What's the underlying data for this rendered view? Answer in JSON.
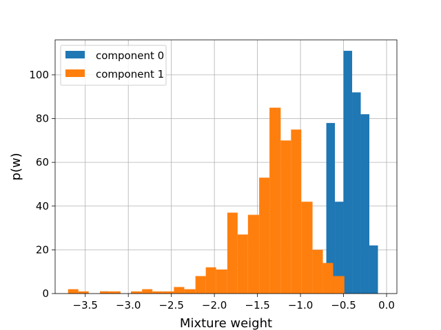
{
  "chart_data": {
    "type": "bar",
    "title": "",
    "xlabel": "Mixture weight",
    "ylabel": "p(w)",
    "xlim": [
      -3.85,
      0.12
    ],
    "ylim": [
      0,
      116
    ],
    "grid": true,
    "legend_position": "top-left",
    "x_ticks": [
      -3.5,
      -3.0,
      -2.5,
      -2.0,
      -1.5,
      -1.0,
      -0.5,
      0.0
    ],
    "x_tick_labels": [
      "−3.5",
      "−3.0",
      "−2.5",
      "−2.0",
      "−1.5",
      "−1.0",
      "−0.5",
      "0.0"
    ],
    "y_ticks": [
      0,
      20,
      40,
      60,
      80,
      100
    ],
    "y_tick_labels": [
      "0",
      "20",
      "40",
      "60",
      "80",
      "100"
    ],
    "series": [
      {
        "name": "component 0",
        "color": "#1f77b4",
        "bins": [
          [
            -3.33,
            -3.23,
            1
          ],
          [
            -0.7,
            -0.6,
            78
          ],
          [
            -0.6,
            -0.5,
            42
          ],
          [
            -0.5,
            -0.4,
            111
          ],
          [
            -0.4,
            -0.3,
            92
          ],
          [
            -0.3,
            -0.2,
            82
          ],
          [
            -0.2,
            -0.1,
            22
          ]
        ]
      },
      {
        "name": "component 1",
        "color": "#ff7f0e",
        "bins": [
          [
            -3.7,
            -3.58,
            2
          ],
          [
            -3.58,
            -3.46,
            1
          ],
          [
            -3.33,
            -3.21,
            1
          ],
          [
            -3.21,
            -3.09,
            1
          ],
          [
            -2.97,
            -2.84,
            1
          ],
          [
            -2.84,
            -2.72,
            2
          ],
          [
            -2.72,
            -2.6,
            1
          ],
          [
            -2.6,
            -2.47,
            1
          ],
          [
            -2.47,
            -2.35,
            3
          ],
          [
            -2.35,
            -2.22,
            2
          ],
          [
            -2.22,
            -2.1,
            8
          ],
          [
            -2.1,
            -1.98,
            12
          ],
          [
            -1.98,
            -1.85,
            11
          ],
          [
            -1.85,
            -1.73,
            37
          ],
          [
            -1.73,
            -1.61,
            27
          ],
          [
            -1.61,
            -1.48,
            36
          ],
          [
            -1.48,
            -1.36,
            53
          ],
          [
            -1.36,
            -1.23,
            85
          ],
          [
            -1.23,
            -1.11,
            70
          ],
          [
            -1.11,
            -0.99,
            75
          ],
          [
            -0.99,
            -0.86,
            42
          ],
          [
            -0.86,
            -0.74,
            20
          ],
          [
            -0.74,
            -0.62,
            14
          ],
          [
            -0.62,
            -0.49,
            8
          ]
        ]
      }
    ]
  }
}
